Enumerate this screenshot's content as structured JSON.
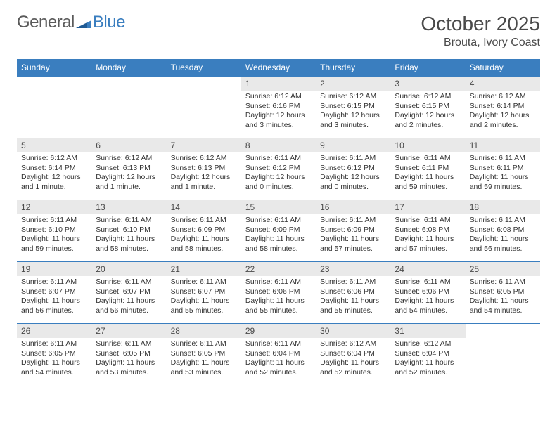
{
  "logo": {
    "general": "General",
    "blue": "Blue"
  },
  "title": "October 2025",
  "location": "Brouta, Ivory Coast",
  "colors": {
    "header_bg": "#3a7ebf",
    "header_text": "#ffffff",
    "daynum_bg": "#e9e9e9",
    "border": "#3a7ebf",
    "text": "#333333",
    "title_text": "#4a4a4a"
  },
  "fonts": {
    "title_size": 28,
    "location_size": 16,
    "dayhead_size": 12,
    "daynum_size": 12,
    "body_size": 10.5
  },
  "dayheads": [
    "Sunday",
    "Monday",
    "Tuesday",
    "Wednesday",
    "Thursday",
    "Friday",
    "Saturday"
  ],
  "weeks": [
    [
      {
        "n": "",
        "lines": []
      },
      {
        "n": "",
        "lines": []
      },
      {
        "n": "",
        "lines": []
      },
      {
        "n": "1",
        "lines": [
          "Sunrise: 6:12 AM",
          "Sunset: 6:16 PM",
          "Daylight: 12 hours and 3 minutes."
        ]
      },
      {
        "n": "2",
        "lines": [
          "Sunrise: 6:12 AM",
          "Sunset: 6:15 PM",
          "Daylight: 12 hours and 3 minutes."
        ]
      },
      {
        "n": "3",
        "lines": [
          "Sunrise: 6:12 AM",
          "Sunset: 6:15 PM",
          "Daylight: 12 hours and 2 minutes."
        ]
      },
      {
        "n": "4",
        "lines": [
          "Sunrise: 6:12 AM",
          "Sunset: 6:14 PM",
          "Daylight: 12 hours and 2 minutes."
        ]
      }
    ],
    [
      {
        "n": "5",
        "lines": [
          "Sunrise: 6:12 AM",
          "Sunset: 6:14 PM",
          "Daylight: 12 hours and 1 minute."
        ]
      },
      {
        "n": "6",
        "lines": [
          "Sunrise: 6:12 AM",
          "Sunset: 6:13 PM",
          "Daylight: 12 hours and 1 minute."
        ]
      },
      {
        "n": "7",
        "lines": [
          "Sunrise: 6:12 AM",
          "Sunset: 6:13 PM",
          "Daylight: 12 hours and 1 minute."
        ]
      },
      {
        "n": "8",
        "lines": [
          "Sunrise: 6:11 AM",
          "Sunset: 6:12 PM",
          "Daylight: 12 hours and 0 minutes."
        ]
      },
      {
        "n": "9",
        "lines": [
          "Sunrise: 6:11 AM",
          "Sunset: 6:12 PM",
          "Daylight: 12 hours and 0 minutes."
        ]
      },
      {
        "n": "10",
        "lines": [
          "Sunrise: 6:11 AM",
          "Sunset: 6:11 PM",
          "Daylight: 11 hours and 59 minutes."
        ]
      },
      {
        "n": "11",
        "lines": [
          "Sunrise: 6:11 AM",
          "Sunset: 6:11 PM",
          "Daylight: 11 hours and 59 minutes."
        ]
      }
    ],
    [
      {
        "n": "12",
        "lines": [
          "Sunrise: 6:11 AM",
          "Sunset: 6:10 PM",
          "Daylight: 11 hours and 59 minutes."
        ]
      },
      {
        "n": "13",
        "lines": [
          "Sunrise: 6:11 AM",
          "Sunset: 6:10 PM",
          "Daylight: 11 hours and 58 minutes."
        ]
      },
      {
        "n": "14",
        "lines": [
          "Sunrise: 6:11 AM",
          "Sunset: 6:09 PM",
          "Daylight: 11 hours and 58 minutes."
        ]
      },
      {
        "n": "15",
        "lines": [
          "Sunrise: 6:11 AM",
          "Sunset: 6:09 PM",
          "Daylight: 11 hours and 58 minutes."
        ]
      },
      {
        "n": "16",
        "lines": [
          "Sunrise: 6:11 AM",
          "Sunset: 6:09 PM",
          "Daylight: 11 hours and 57 minutes."
        ]
      },
      {
        "n": "17",
        "lines": [
          "Sunrise: 6:11 AM",
          "Sunset: 6:08 PM",
          "Daylight: 11 hours and 57 minutes."
        ]
      },
      {
        "n": "18",
        "lines": [
          "Sunrise: 6:11 AM",
          "Sunset: 6:08 PM",
          "Daylight: 11 hours and 56 minutes."
        ]
      }
    ],
    [
      {
        "n": "19",
        "lines": [
          "Sunrise: 6:11 AM",
          "Sunset: 6:07 PM",
          "Daylight: 11 hours and 56 minutes."
        ]
      },
      {
        "n": "20",
        "lines": [
          "Sunrise: 6:11 AM",
          "Sunset: 6:07 PM",
          "Daylight: 11 hours and 56 minutes."
        ]
      },
      {
        "n": "21",
        "lines": [
          "Sunrise: 6:11 AM",
          "Sunset: 6:07 PM",
          "Daylight: 11 hours and 55 minutes."
        ]
      },
      {
        "n": "22",
        "lines": [
          "Sunrise: 6:11 AM",
          "Sunset: 6:06 PM",
          "Daylight: 11 hours and 55 minutes."
        ]
      },
      {
        "n": "23",
        "lines": [
          "Sunrise: 6:11 AM",
          "Sunset: 6:06 PM",
          "Daylight: 11 hours and 55 minutes."
        ]
      },
      {
        "n": "24",
        "lines": [
          "Sunrise: 6:11 AM",
          "Sunset: 6:06 PM",
          "Daylight: 11 hours and 54 minutes."
        ]
      },
      {
        "n": "25",
        "lines": [
          "Sunrise: 6:11 AM",
          "Sunset: 6:05 PM",
          "Daylight: 11 hours and 54 minutes."
        ]
      }
    ],
    [
      {
        "n": "26",
        "lines": [
          "Sunrise: 6:11 AM",
          "Sunset: 6:05 PM",
          "Daylight: 11 hours and 54 minutes."
        ]
      },
      {
        "n": "27",
        "lines": [
          "Sunrise: 6:11 AM",
          "Sunset: 6:05 PM",
          "Daylight: 11 hours and 53 minutes."
        ]
      },
      {
        "n": "28",
        "lines": [
          "Sunrise: 6:11 AM",
          "Sunset: 6:05 PM",
          "Daylight: 11 hours and 53 minutes."
        ]
      },
      {
        "n": "29",
        "lines": [
          "Sunrise: 6:11 AM",
          "Sunset: 6:04 PM",
          "Daylight: 11 hours and 52 minutes."
        ]
      },
      {
        "n": "30",
        "lines": [
          "Sunrise: 6:12 AM",
          "Sunset: 6:04 PM",
          "Daylight: 11 hours and 52 minutes."
        ]
      },
      {
        "n": "31",
        "lines": [
          "Sunrise: 6:12 AM",
          "Sunset: 6:04 PM",
          "Daylight: 11 hours and 52 minutes."
        ]
      },
      {
        "n": "",
        "lines": []
      }
    ]
  ]
}
